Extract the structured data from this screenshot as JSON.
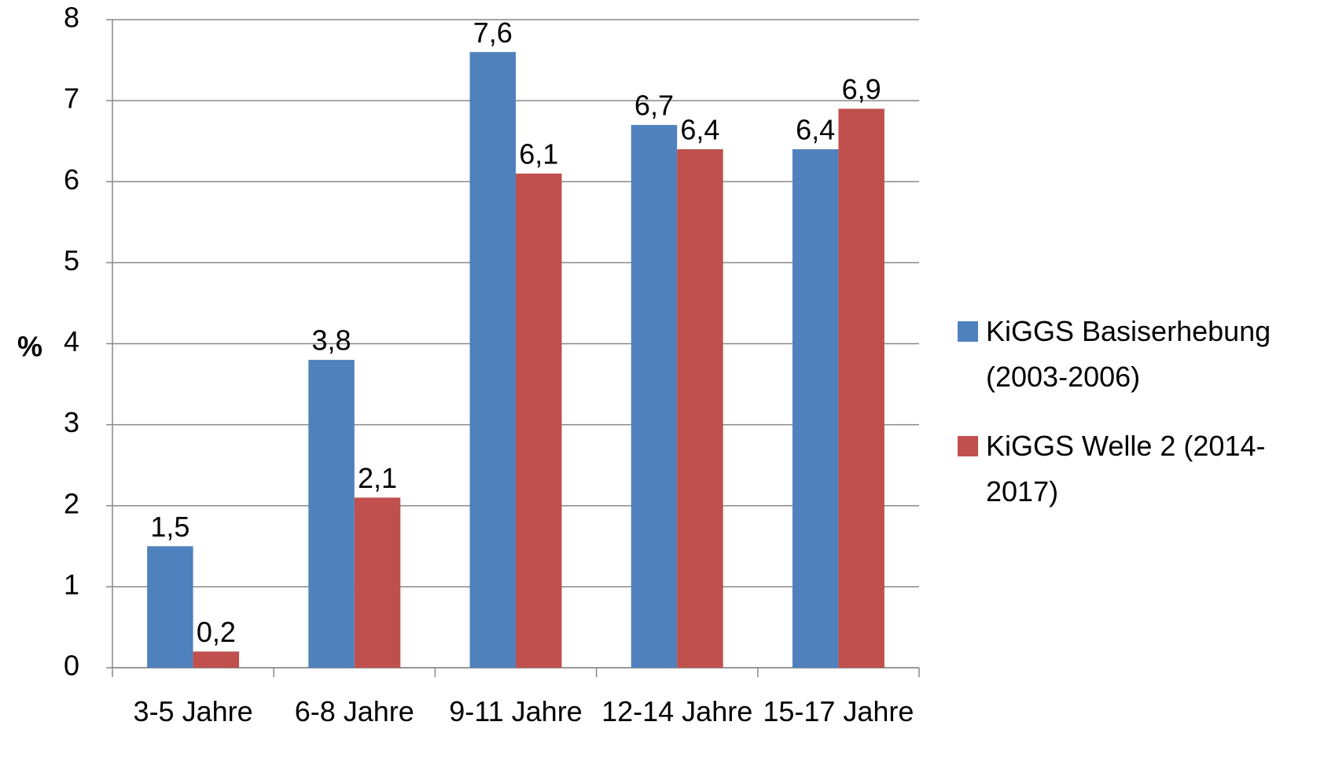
{
  "chart_data": {
    "type": "bar",
    "y_label": "%",
    "categories": [
      "3-5 Jahre",
      "6-8 Jahre",
      "9-11 Jahre",
      "12-14 Jahre",
      "15-17 Jahre"
    ],
    "series": [
      {
        "name": "KiGGS Basiserhebung (2003-2006)",
        "color": "#4f81bd",
        "values": [
          1.5,
          3.8,
          7.6,
          6.7,
          6.4
        ],
        "value_labels": [
          "1,5",
          "3,8",
          "7,6",
          "6,7",
          "6,4"
        ]
      },
      {
        "name": "KiGGS Welle 2 (2014-2017)",
        "color": "#c0504d",
        "values": [
          0.2,
          2.1,
          6.1,
          6.4,
          6.9
        ],
        "value_labels": [
          "0,2",
          "2,1",
          "6,1",
          "6,4",
          "6,9"
        ]
      }
    ],
    "ylim": [
      0,
      8
    ],
    "yticks": [
      0,
      1,
      2,
      3,
      4,
      5,
      6,
      7,
      8
    ],
    "grid": true,
    "legend": "right"
  }
}
